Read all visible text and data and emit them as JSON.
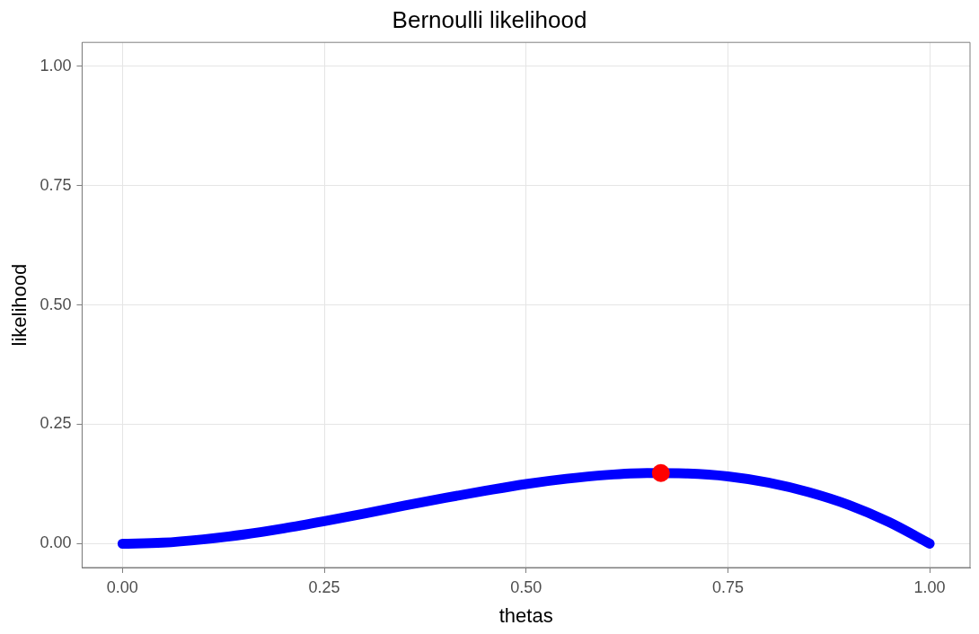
{
  "chart_data": {
    "type": "line",
    "title": "Bernoulli likelihood",
    "xlabel": "thetas",
    "ylabel": "likelihood",
    "series": [
      {
        "color": "#0000ff",
        "x": [
          0,
          0.05,
          0.1,
          0.15,
          0.2,
          0.25,
          0.3,
          0.35,
          0.4,
          0.45,
          0.5,
          0.55,
          0.6,
          0.65,
          0.7,
          0.75,
          0.8,
          0.85,
          0.9,
          0.95,
          1
        ],
        "values": [
          0,
          0.002,
          0.009,
          0.019,
          0.032,
          0.047,
          0.063,
          0.08,
          0.096,
          0.111,
          0.125,
          0.136,
          0.144,
          0.148,
          0.147,
          0.141,
          0.128,
          0.108,
          0.081,
          0.045,
          0
        ]
      },
      {
        "type": "scatter",
        "color": "#ff0000",
        "x": [
          0.667
        ],
        "values": [
          0.148
        ]
      }
    ],
    "xlim": [
      -0.05,
      1.05
    ],
    "xticks": [
      {
        "value": 0,
        "label": "0.00"
      },
      {
        "value": 0.25,
        "label": "0.25"
      },
      {
        "value": 0.5,
        "label": "0.50"
      },
      {
        "value": 0.75,
        "label": "0.75"
      },
      {
        "value": 1,
        "label": "1.00"
      }
    ],
    "ylim": [
      -0.05,
      1.05
    ],
    "yticks": [
      {
        "value": 0,
        "label": "0.00"
      },
      {
        "value": 0.25,
        "label": "0.25"
      },
      {
        "value": 0.5,
        "label": "0.50"
      },
      {
        "value": 0.75,
        "label": "0.75"
      },
      {
        "value": 1,
        "label": "1.00"
      }
    ],
    "grid": true,
    "line_style": "solid"
  }
}
